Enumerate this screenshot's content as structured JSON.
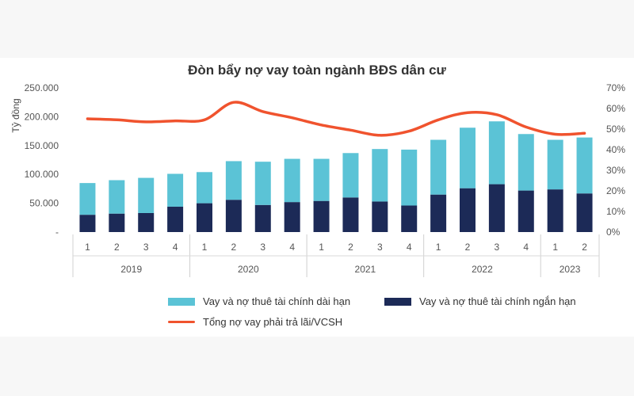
{
  "chart_data": {
    "type": "bar",
    "title": "Đòn bẩy nợ vay toàn ngành BĐS dân cư",
    "ylabel": "Tỷ đồng",
    "y_left_ticks": [
      "250.000",
      "200.000",
      "150.000",
      "100.000",
      "50.000",
      "-"
    ],
    "y_left_range": [
      0,
      250000
    ],
    "y_right_ticks": [
      "70%",
      "60%",
      "50%",
      "40%",
      "30%",
      "20%",
      "10%",
      "0%"
    ],
    "y_right_range": [
      0,
      70
    ],
    "categories": [
      "1",
      "2",
      "3",
      "4",
      "1",
      "2",
      "3",
      "4",
      "1",
      "2",
      "3",
      "4",
      "1",
      "2",
      "3",
      "4",
      "1",
      "2"
    ],
    "years": [
      {
        "label": "2019",
        "count": 4
      },
      {
        "label": "2020",
        "count": 4
      },
      {
        "label": "2021",
        "count": 4
      },
      {
        "label": "2022",
        "count": 4
      },
      {
        "label": "2023",
        "count": 2
      }
    ],
    "series": [
      {
        "name": "Vay và nợ thuê tài chính dài hạn",
        "kind": "bar-stack-top",
        "color": "#5bc3d6",
        "values": [
          55000,
          58000,
          61000,
          57000,
          54000,
          67000,
          75000,
          75000,
          73000,
          77000,
          91000,
          97000,
          95000,
          105000,
          109000,
          98000,
          86000,
          97000
        ]
      },
      {
        "name": "Vay và nợ thuê tài chính ngắn hạn",
        "kind": "bar-stack-bottom",
        "color": "#1c2a57",
        "values": [
          30000,
          32000,
          33000,
          44000,
          50000,
          56000,
          47000,
          52000,
          54000,
          60000,
          53000,
          46000,
          65000,
          76000,
          83000,
          72000,
          74000,
          67000
        ]
      },
      {
        "name": "Tổng nợ vay phải trả lãi/VCSH",
        "kind": "line",
        "axis": "right",
        "color": "#f0532e",
        "values": [
          55,
          54.5,
          53.5,
          54,
          54.5,
          63,
          58.5,
          55.5,
          52,
          49.5,
          47,
          49,
          54.5,
          58,
          57,
          51,
          47.5,
          48
        ]
      }
    ],
    "legend_position": "bottom",
    "grid": false
  }
}
